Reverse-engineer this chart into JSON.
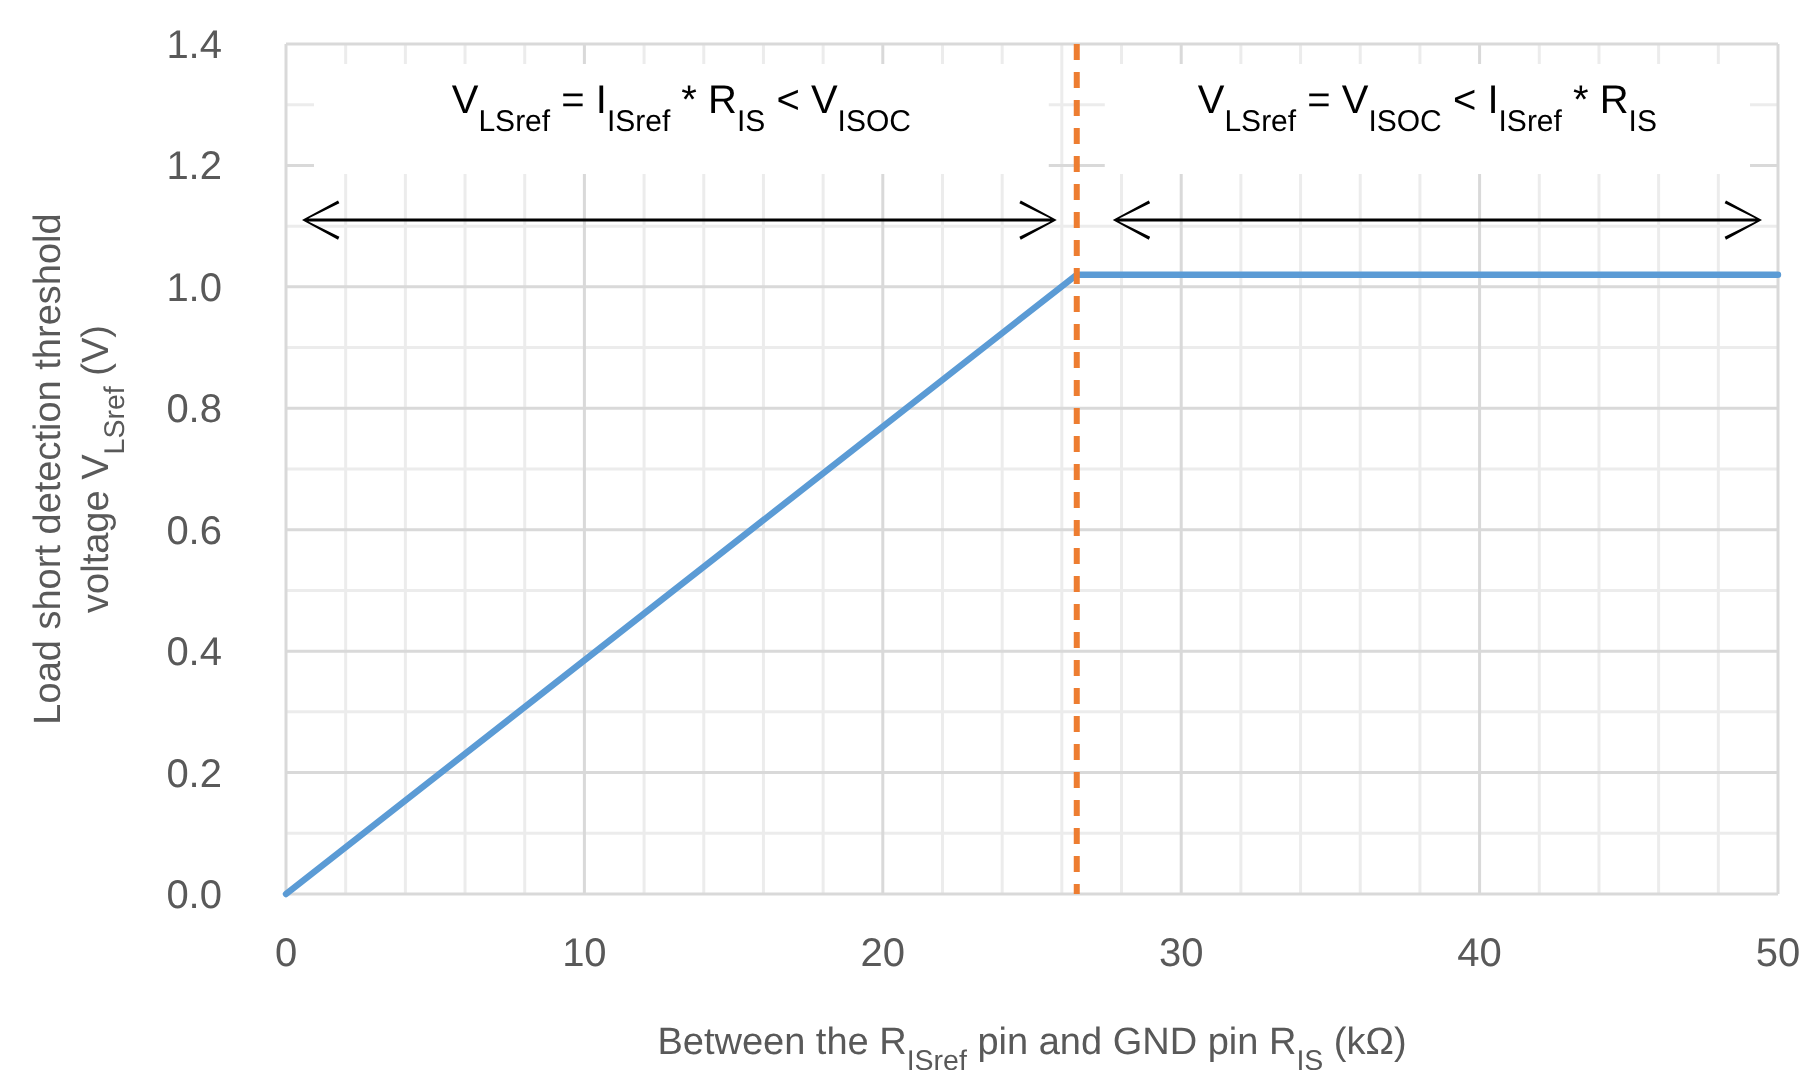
{
  "chart_data": {
    "type": "line",
    "xlabel": "Between the R$_{ISref}$ pin and GND pin R$_{IS}$ (kΩ)",
    "ylabel": "Load short detection threshold\nvoltage V$_{LSref}$ (V)",
    "x": [
      0,
      26.5,
      50
    ],
    "series": [
      {
        "color": "#5b9bd5",
        "values": [
          0,
          1.02,
          1.02
        ]
      }
    ],
    "xlim": [
      0,
      50
    ],
    "xticks": [
      0,
      10,
      20,
      30,
      40,
      50
    ],
    "ylim": [
      0,
      1.4
    ],
    "yticks": [
      {
        "value": 0,
        "label": "0.0"
      },
      {
        "value": 0.2,
        "label": "0.2"
      },
      {
        "value": 0.4,
        "label": "0.4"
      },
      {
        "value": 0.6,
        "label": "0.6"
      },
      {
        "value": 0.8,
        "label": "0.8"
      },
      {
        "value": 1,
        "label": "1.0"
      },
      {
        "value": 1.2,
        "label": "1.2"
      },
      {
        "value": 1.4,
        "label": "1.4"
      }
    ],
    "grid": true,
    "marker": "none",
    "line_style": "solid",
    "ref_lines": [
      {
        "axis": "x",
        "value": 26.5,
        "color": "#ed7d31",
        "line_style": "dashed"
      }
    ],
    "annotations": [
      "V$_{LSref}$ = I$_{ISref}$ * R$_{IS}$ < V$_{ISOC}$",
      "V$_{LSref}$ = V$_{ISOC}$ < I$_{ISref}$ * R$_{IS}$"
    ]
  }
}
